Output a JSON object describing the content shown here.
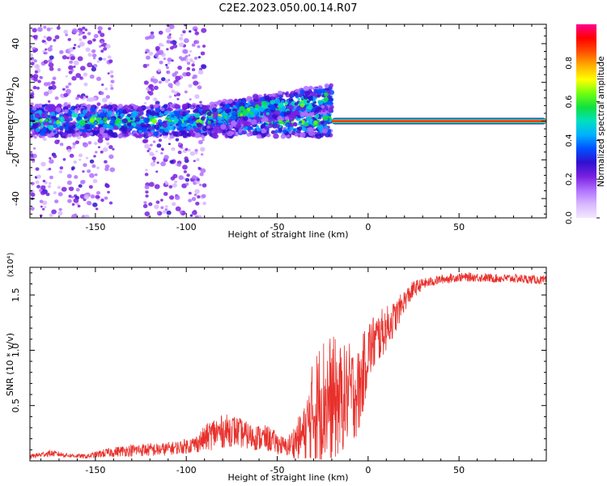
{
  "title": "C2E2.2023.050.00.14.R07",
  "colors": {
    "line": "#e8302b",
    "spectrogram_cmap": [
      "#f2e8ff",
      "#d8b8ff",
      "#b070ff",
      "#7a20e0",
      "#3010d0",
      "#0050ff",
      "#00b0ff",
      "#00e0c0",
      "#10e040",
      "#70ff10",
      "#ffff00",
      "#ffb000",
      "#ff5000",
      "#ff0000",
      "#ff0090"
    ]
  },
  "chart_data": [
    {
      "type": "heatmap",
      "title": "C2E2.2023.050.00.14.R07",
      "xlabel": "Height of straight line (km)",
      "ylabel": "Frequency (Hz)",
      "xlim": [
        -186,
        98
      ],
      "ylim": [
        -50,
        50
      ],
      "x_ticks": [
        -150,
        -100,
        -50,
        0,
        50
      ],
      "y_ticks": [
        -40,
        -20,
        0,
        20,
        40
      ],
      "colorbar": {
        "label": "Normalized spectral amplitude",
        "range": [
          0.0,
          1.0
        ],
        "ticks": [
          "0.0",
          "0.2",
          "0.4",
          "0.6",
          "0.8"
        ]
      },
      "features": [
        {
          "description": "scattered weak noise",
          "x_range": [
            -186,
            -90
          ],
          "freq_range": [
            -50,
            50
          ],
          "amplitude": 0.2
        },
        {
          "description": "main tone band",
          "x_range": [
            -186,
            -20
          ],
          "freq_center": 0,
          "freq_halfwidth": 8,
          "amplitude": 0.45
        },
        {
          "description": "drifting band",
          "x_range": [
            -88,
            -20
          ],
          "freq_start": 2,
          "freq_end": 12,
          "amplitude": 0.5
        },
        {
          "description": "strong narrow tone",
          "x_range": [
            -20,
            98
          ],
          "freq_center": 0,
          "freq_halfwidth": 1.5,
          "amplitude": 0.95
        }
      ]
    },
    {
      "type": "line",
      "xlabel": "Height of straight line (km)",
      "ylabel": "SNR (10 * v/v)",
      "y_scale_label": "(x10⁴)",
      "xlim": [
        -186,
        98
      ],
      "ylim": [
        0,
        1.75
      ],
      "x_ticks": [
        -150,
        -100,
        -50,
        0,
        50
      ],
      "y_ticks": [
        0.5,
        1.0,
        1.5
      ],
      "y_tick_labels": [
        "0.5",
        "1.0",
        "1.5"
      ],
      "series": [
        {
          "x": [
            -186,
            -175,
            -165,
            -155,
            -145,
            -135,
            -125,
            -115,
            -105,
            -95,
            -85,
            -75,
            -65,
            -55,
            -45,
            -35,
            -30,
            -25,
            -20,
            -15,
            -10,
            -5,
            0,
            5,
            10,
            15,
            20,
            25,
            30,
            40,
            50,
            60,
            70,
            80,
            90,
            98
          ],
          "y": [
            0.04,
            0.07,
            0.05,
            0.04,
            0.07,
            0.09,
            0.1,
            0.1,
            0.12,
            0.15,
            0.25,
            0.28,
            0.22,
            0.2,
            0.12,
            0.25,
            0.45,
            0.55,
            0.55,
            0.55,
            0.62,
            0.62,
            1.0,
            1.1,
            1.2,
            1.3,
            1.45,
            1.55,
            1.6,
            1.64,
            1.66,
            1.66,
            1.65,
            1.65,
            1.64,
            1.63
          ],
          "noise_amplitude": [
            0.02,
            0.03,
            0.02,
            0.02,
            0.04,
            0.05,
            0.06,
            0.06,
            0.06,
            0.08,
            0.15,
            0.15,
            0.12,
            0.12,
            0.08,
            0.25,
            0.5,
            0.6,
            0.6,
            0.5,
            0.45,
            0.4,
            0.3,
            0.25,
            0.2,
            0.15,
            0.1,
            0.08,
            0.05,
            0.04,
            0.04,
            0.04,
            0.04,
            0.04,
            0.04,
            0.04
          ]
        }
      ]
    }
  ]
}
